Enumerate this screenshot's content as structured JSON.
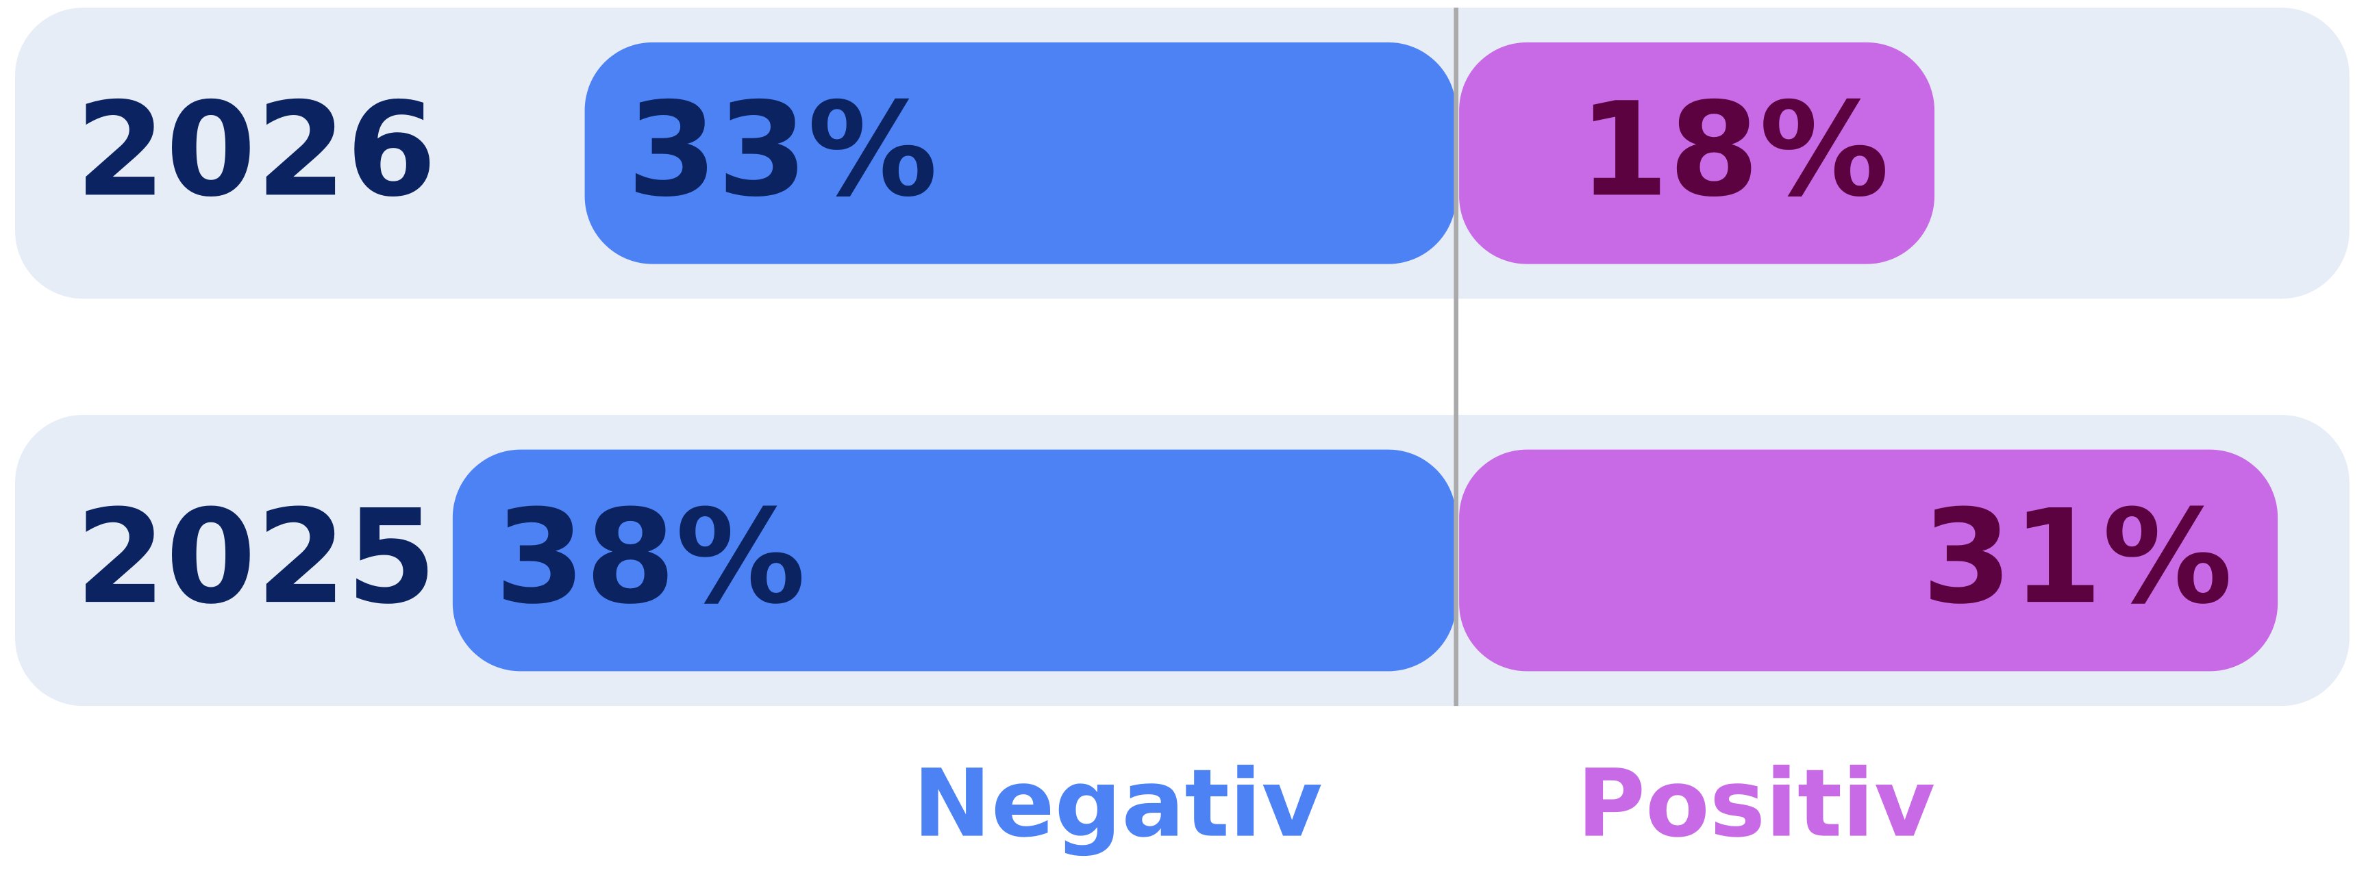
{
  "chart_data": {
    "type": "diverging-bar",
    "categories": [
      "2026",
      "2025"
    ],
    "series": [
      {
        "name": "Negativ",
        "color": "#4d82f5",
        "values": [
          33,
          38
        ],
        "value_labels": [
          "33%",
          "38%"
        ]
      },
      {
        "name": "Positiv",
        "color": "#c86ae6",
        "values": [
          18,
          31
        ],
        "value_labels": [
          "18%",
          "31%"
        ]
      }
    ]
  }
}
